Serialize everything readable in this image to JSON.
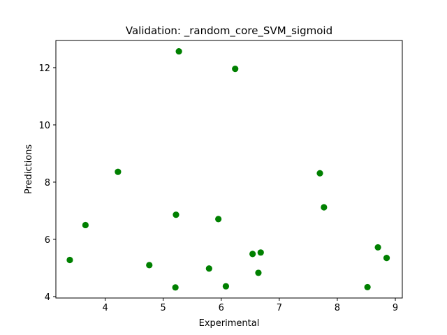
{
  "chart_data": {
    "type": "scatter",
    "title": "Validation: _random_core_SVM_sigmoid",
    "xlabel": "Experimental",
    "ylabel": "Predictions",
    "xlim": [
      3.15,
      9.12
    ],
    "ylim": [
      3.95,
      12.95
    ],
    "xticks": [
      4,
      5,
      6,
      7,
      8,
      9
    ],
    "yticks": [
      4,
      6,
      8,
      10,
      12
    ],
    "grid": false,
    "marker_color": "#008000",
    "points": [
      {
        "x": 3.39,
        "y": 5.28
      },
      {
        "x": 3.66,
        "y": 6.5
      },
      {
        "x": 4.22,
        "y": 8.36
      },
      {
        "x": 4.76,
        "y": 5.1
      },
      {
        "x": 5.21,
        "y": 4.32
      },
      {
        "x": 5.22,
        "y": 6.86
      },
      {
        "x": 5.27,
        "y": 12.57
      },
      {
        "x": 5.79,
        "y": 4.98
      },
      {
        "x": 5.95,
        "y": 6.71
      },
      {
        "x": 6.08,
        "y": 4.36
      },
      {
        "x": 6.24,
        "y": 11.96
      },
      {
        "x": 6.54,
        "y": 5.49
      },
      {
        "x": 6.64,
        "y": 4.83
      },
      {
        "x": 6.68,
        "y": 5.54
      },
      {
        "x": 7.7,
        "y": 8.31
      },
      {
        "x": 7.77,
        "y": 7.12
      },
      {
        "x": 8.52,
        "y": 4.33
      },
      {
        "x": 8.7,
        "y": 5.72
      },
      {
        "x": 8.85,
        "y": 5.35
      }
    ]
  }
}
